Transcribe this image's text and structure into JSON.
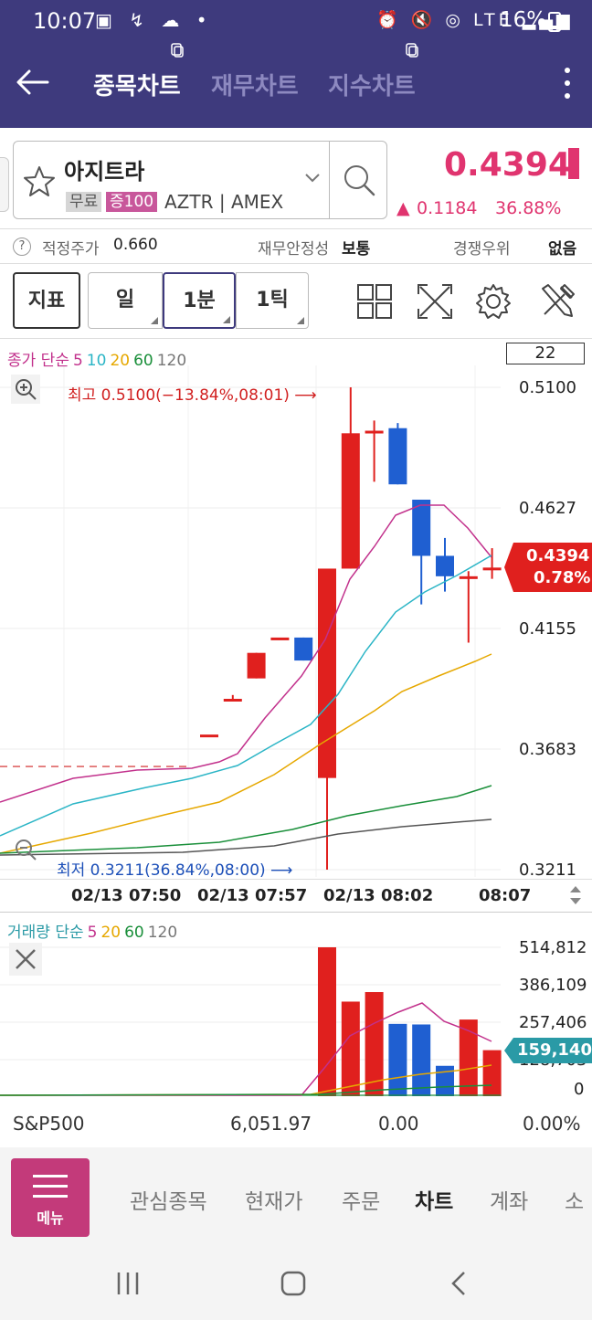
{
  "status": {
    "time": "10:07",
    "battery": "16%",
    "network": "LTE"
  },
  "header": {
    "tabs": [
      {
        "label": "종목차트",
        "active": true
      },
      {
        "label": "재무차트",
        "active": false
      },
      {
        "label": "지수차트",
        "active": false
      }
    ]
  },
  "stock": {
    "name": "아지트라",
    "tag_free": "무료",
    "tag_margin": "증100",
    "ticker": "AZTR",
    "exchange": "AMEX",
    "price": "0.4394",
    "change_arrow": "▲",
    "change": "0.1184",
    "change_pct": "36.88%",
    "accent_color": "#e0346f"
  },
  "info_row": {
    "help_icon": "?",
    "fair_price_label": "적정주가",
    "fair_price_value": "0.660",
    "stability_label": "재무안정성",
    "stability_value": "보통",
    "competitive_label": "경쟁우위",
    "competitive_value": "없음"
  },
  "toolbar": {
    "indicator_label": "지표",
    "period_buttons": [
      "일",
      "1분",
      "1틱"
    ],
    "selected_period": "1분"
  },
  "price_chart": {
    "legend_label": "종가 단순",
    "ma_periods": [
      "5",
      "10",
      "20",
      "60",
      "120"
    ],
    "count_box": "22",
    "high_label": "최고 0.5100(−13.84%,08:01) ⟶",
    "low_label": "최저 0.3211(36.84%,08:00) ⟶",
    "current_price_tag": "0.4394",
    "current_pct_tag": "0.78%",
    "y_ticks": [
      "0.5100",
      "0.4627",
      "0.4155",
      "0.3683",
      "0.3211"
    ],
    "x_ticks": [
      "02/13 07:50",
      "02/13 07:57",
      "02/13 08:02",
      "08:07"
    ]
  },
  "volume_chart": {
    "legend_label": "거래량 단순",
    "ma_periods": [
      "5",
      "20",
      "60",
      "120"
    ],
    "y_ticks": [
      "514,812",
      "386,109",
      "257,406",
      "128,703",
      "0"
    ],
    "current_tag": "159,140"
  },
  "chart_data": {
    "type": "candlestick",
    "title": "",
    "ylim": [
      0.3211,
      0.51
    ],
    "candles": [
      {
        "o": 0.374,
        "h": 0.374,
        "l": 0.374,
        "c": 0.374,
        "dir": "up"
      },
      {
        "o": 0.388,
        "h": 0.3895,
        "l": 0.388,
        "c": 0.388,
        "dir": "up"
      },
      {
        "o": 0.396,
        "h": 0.406,
        "l": 0.396,
        "c": 0.406,
        "dir": "up"
      },
      {
        "o": 0.412,
        "h": 0.412,
        "l": 0.412,
        "c": 0.412,
        "dir": "up"
      },
      {
        "o": 0.412,
        "h": 0.412,
        "l": 0.403,
        "c": 0.403,
        "dir": "down"
      },
      {
        "o": 0.357,
        "h": 0.439,
        "l": 0.3211,
        "c": 0.439,
        "dir": "up"
      },
      {
        "o": 0.439,
        "h": 0.51,
        "l": 0.439,
        "c": 0.492,
        "dir": "up"
      },
      {
        "o": 0.492,
        "h": 0.497,
        "l": 0.473,
        "c": 0.493,
        "dir": "up"
      },
      {
        "o": 0.494,
        "h": 0.496,
        "l": 0.472,
        "c": 0.472,
        "dir": "down"
      },
      {
        "o": 0.466,
        "h": 0.466,
        "l": 0.425,
        "c": 0.444,
        "dir": "down"
      },
      {
        "o": 0.444,
        "h": 0.451,
        "l": 0.43,
        "c": 0.436,
        "dir": "down"
      },
      {
        "o": 0.435,
        "h": 0.438,
        "l": 0.41,
        "c": 0.436,
        "dir": "up"
      },
      {
        "o": 0.4385,
        "h": 0.447,
        "l": 0.435,
        "c": 0.4394,
        "dir": "up"
      }
    ],
    "volume": [
      0,
      0,
      0,
      0,
      0,
      514812,
      327000,
      360000,
      250000,
      248000,
      105000,
      265000,
      159140
    ]
  }
}
